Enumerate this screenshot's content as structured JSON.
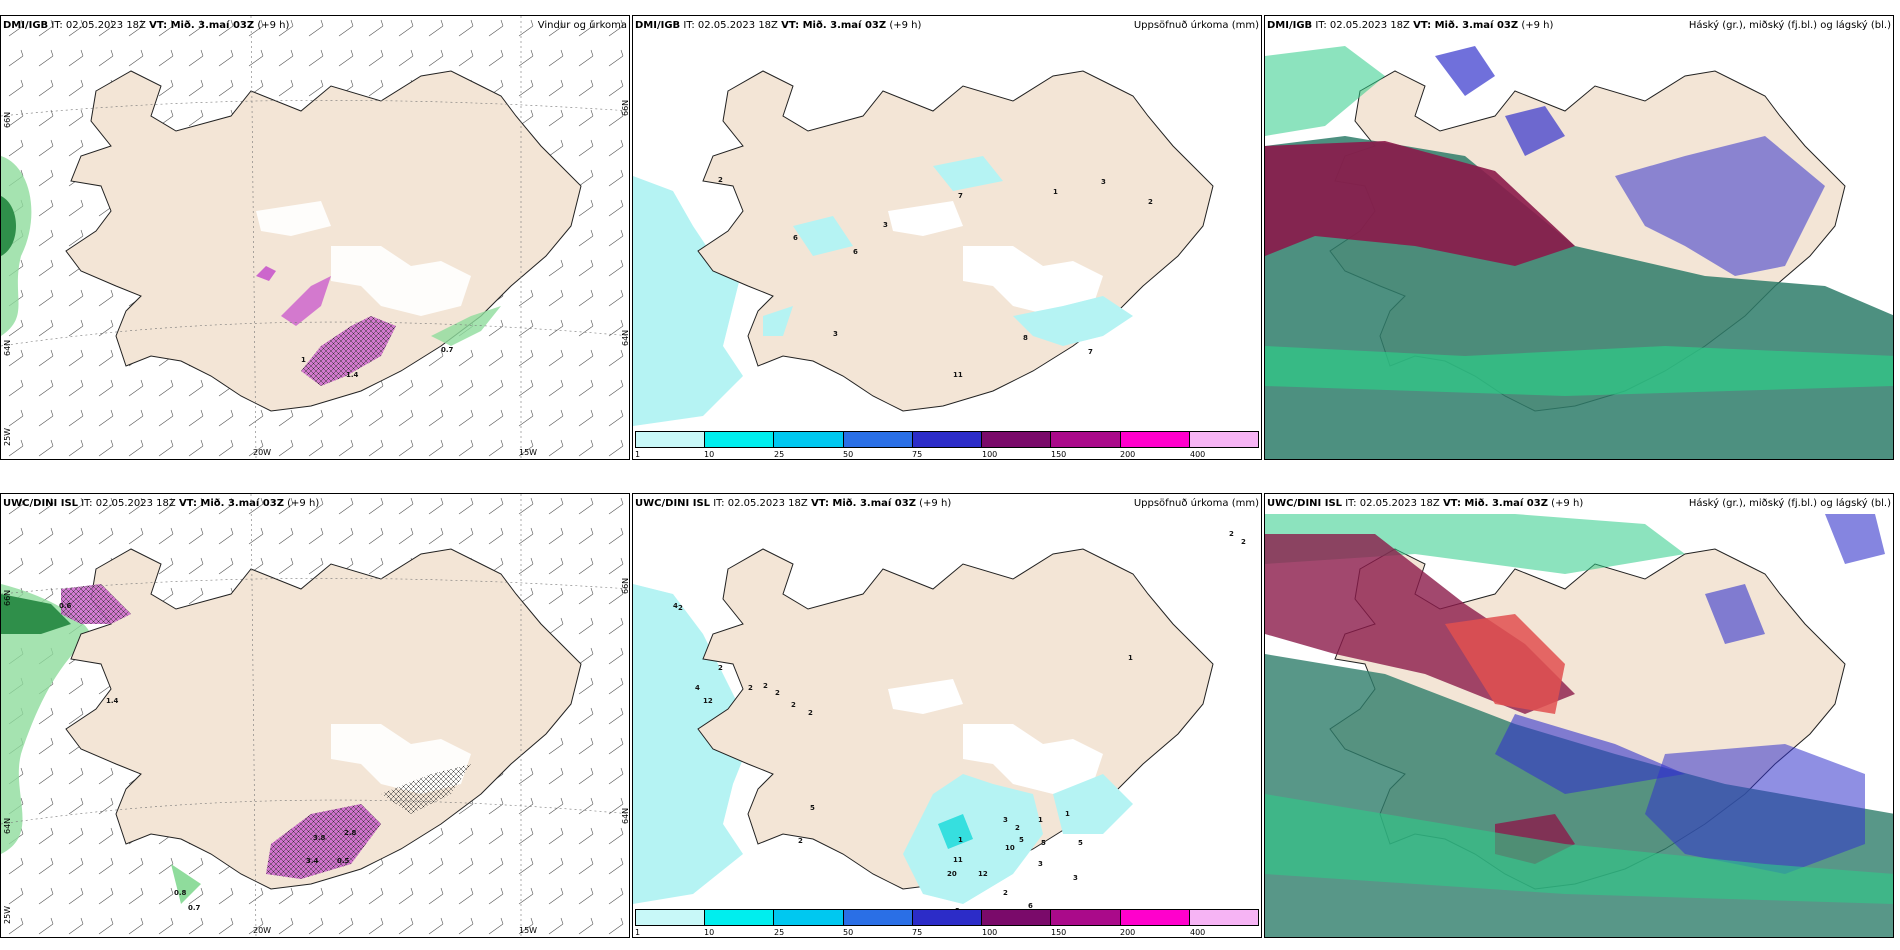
{
  "panels": [
    {
      "id": "p1",
      "source": "DMI/IGB",
      "it": "IT: 02.05.2023 18Z",
      "vt": "VT: Mið. 3.maí 03Z",
      "lead": "(+9 h)",
      "title": "Vindur og úrkoma",
      "lon_labels": [
        "20W",
        "15W"
      ],
      "lat_labels": [
        "66N",
        "64N",
        "25W",
        "66N",
        "64N"
      ],
      "values": [
        "0.7",
        "1.4",
        "1"
      ]
    },
    {
      "id": "p2",
      "source": "DMI/IGB",
      "it": "IT: 02.05.2023 18Z",
      "vt": "VT: Mið. 3.maí 03Z",
      "lead": "(+9 h)",
      "title": "Uppsöfnuð úrkoma (mm)",
      "values": [
        "2",
        "6",
        "6",
        "3",
        "7",
        "1",
        "3",
        "2",
        "8",
        "7",
        "11",
        "3"
      ]
    },
    {
      "id": "p3",
      "source": "DMI/IGB",
      "it": "IT: 02.05.2023 18Z",
      "vt": "VT: Mið. 3.maí 03Z",
      "lead": "(+9 h)",
      "title": "Háský (gr.), miðský (fj.bl.) og lágský (bl.)"
    },
    {
      "id": "p4",
      "source": "UWC/DINI ISL",
      "it": "IT: 02.05.2023 18Z",
      "vt": "VT: Mið. 3.maí 03Z",
      "lead": "(+9 h)",
      "title": "",
      "lon_labels": [
        "20W",
        "15W"
      ],
      "lat_labels": [
        "66N",
        "64N",
        "25W",
        "66N",
        "64N"
      ],
      "values": [
        "0.8",
        "0.7",
        "3.8",
        "2.8",
        "3.4",
        "0.5",
        "1.4",
        "0.6"
      ]
    },
    {
      "id": "p5",
      "source": "UWC/DINI ISL",
      "it": "IT: 02.05.2023 18Z",
      "vt": "VT: Mið. 3.maí 03Z",
      "lead": "(+9 h)",
      "title": "Uppsöfnuð úrkoma (mm)",
      "values": [
        "2",
        "2",
        "4",
        "2",
        "4",
        "12",
        "2",
        "2",
        "2",
        "2",
        "1",
        "2",
        "5",
        "11",
        "12",
        "10",
        "5",
        "3",
        "1",
        "1",
        "2",
        "5",
        "5",
        "3",
        "20",
        "2",
        "6",
        "3",
        "3",
        "1",
        "2",
        "2"
      ]
    },
    {
      "id": "p6",
      "source": "UWC/DINI ISL",
      "it": "IT: 02.05.2023 18Z",
      "vt": "VT: Mið. 3.maí 03Z",
      "lead": "(+9 h)",
      "title": "Háský (gr.), miðský (fj.bl.) og lágský (bl.)"
    }
  ],
  "colorbar": {
    "ticks": [
      "1",
      "10",
      "25",
      "50",
      "75",
      "100",
      "150",
      "200",
      "400"
    ],
    "colors": [
      "#c8f8f8",
      "#00eeee",
      "#00c8f0",
      "#2a6fe6",
      "#2c2cc8",
      "#7a0a6a",
      "#aa0a8a",
      "#ff00cc",
      "#f6b4f4"
    ]
  },
  "colors": {
    "land": "#f3e5d6",
    "ocean": "#ffffff",
    "precip_green": "#7dd68a",
    "precip_pink": "#cc66cc",
    "rain_cyan": "#b5f3f3",
    "high_cloud": "#2ecc88",
    "mid_cloud": "#3333cc",
    "low_cloud": "#8b1a4a"
  }
}
